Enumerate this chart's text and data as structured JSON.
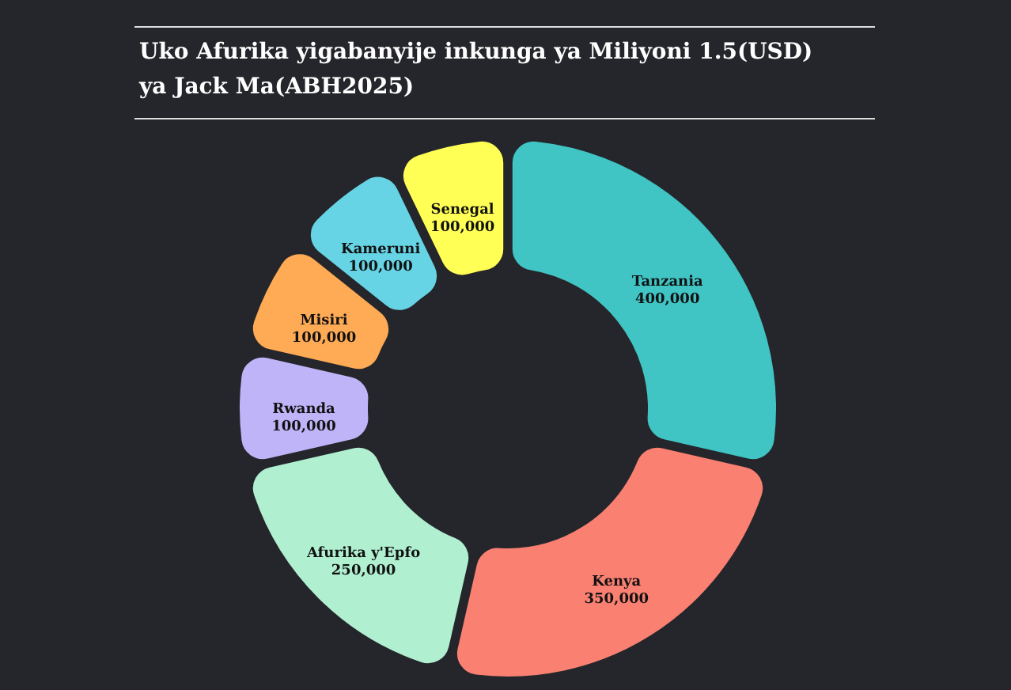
{
  "chart_data": {
    "type": "donut",
    "title": "Uko Afurika yigabanyije inkunga ya Miliyoni 1.5(USD) ya Jack Ma(ABH2025)",
    "categories": [
      "Tanzania",
      "Kenya",
      "Afurika y'Epfo",
      "Rwanda",
      "Misiri",
      "Kameruni",
      "Senegal"
    ],
    "values": [
      400000,
      350000,
      250000,
      100000,
      100000,
      100000,
      100000
    ],
    "colors": [
      "#40c4c4",
      "#fa8072",
      "#b0f0d0",
      "#c0b4f8",
      "#ffaa55",
      "#66d4e4",
      "#ffff55"
    ],
    "value_labels": [
      "400,000",
      "350,000",
      "250,000",
      "100,000",
      "100,000",
      "100,000",
      "100,000"
    ]
  }
}
